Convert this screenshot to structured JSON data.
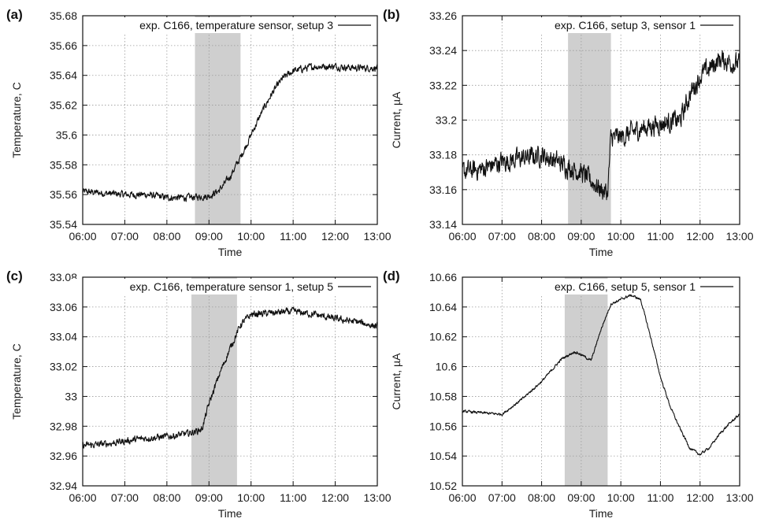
{
  "chart_data": [
    {
      "type": "line",
      "panel_label": "(a)",
      "xlabel": "Time",
      "ylabel": "Temperature, C",
      "x_ticks": [
        "06:00",
        "07:00",
        "08:00",
        "09:00",
        "10:00",
        "11:00",
        "12:00",
        "13:00"
      ],
      "xlim": [
        "06:00",
        "13:00"
      ],
      "ylim": [
        35.54,
        35.68
      ],
      "y_ticks": [
        "35.54",
        "35.56",
        "35.58",
        "35.6",
        "35.62",
        "35.64",
        "35.66",
        "35.68"
      ],
      "grid": true,
      "shaded_interval": [
        "08:40",
        "09:45"
      ],
      "legend_position": "top-right",
      "series": [
        {
          "name": "exp. C166, temperature sensor, setup 3",
          "x": [
            "06:00",
            "06:30",
            "07:00",
            "07:30",
            "08:00",
            "08:30",
            "09:00",
            "09:15",
            "09:30",
            "09:45",
            "10:00",
            "10:15",
            "10:30",
            "10:45",
            "11:00",
            "11:30",
            "12:00",
            "12:30",
            "13:00"
          ],
          "y": [
            35.562,
            35.561,
            35.56,
            35.56,
            35.558,
            35.558,
            35.559,
            35.563,
            35.572,
            35.585,
            35.6,
            35.615,
            35.628,
            35.638,
            35.643,
            35.646,
            35.646,
            35.645,
            35.645
          ],
          "noise": 0.004
        }
      ]
    },
    {
      "type": "line",
      "panel_label": "(b)",
      "xlabel": "Time",
      "ylabel": "Current, µA",
      "x_ticks": [
        "06:00",
        "07:00",
        "08:00",
        "09:00",
        "10:00",
        "11:00",
        "12:00",
        "13:00"
      ],
      "xlim": [
        "06:00",
        "13:00"
      ],
      "ylim": [
        33.14,
        33.26
      ],
      "y_ticks": [
        "33.14",
        "33.16",
        "33.18",
        "33.2",
        "33.22",
        "33.24",
        "33.26"
      ],
      "grid": true,
      "shaded_interval": [
        "08:40",
        "09:45"
      ],
      "legend_position": "top-right",
      "series": [
        {
          "name": "exp. C166, setup 3, sensor 1",
          "x": [
            "06:00",
            "06:30",
            "07:00",
            "07:30",
            "08:00",
            "08:30",
            "09:00",
            "09:30",
            "09:40",
            "09:45",
            "10:00",
            "10:30",
            "11:00",
            "11:30",
            "11:45",
            "12:00",
            "12:30",
            "13:00"
          ],
          "y": [
            33.17,
            33.172,
            33.176,
            33.178,
            33.18,
            33.175,
            33.17,
            33.16,
            33.158,
            33.19,
            33.19,
            33.195,
            33.198,
            33.2,
            33.215,
            33.225,
            33.235,
            33.232
          ],
          "noise": 0.01
        }
      ]
    },
    {
      "type": "line",
      "panel_label": "(c)",
      "xlabel": "Time",
      "ylabel": "Temperature, C",
      "x_ticks": [
        "06:00",
        "07:00",
        "08:00",
        "09:00",
        "10:00",
        "11:00",
        "12:00",
        "13:00"
      ],
      "xlim": [
        "06:00",
        "13:00"
      ],
      "ylim": [
        32.94,
        33.08
      ],
      "y_ticks": [
        "32.94",
        "32.96",
        "32.98",
        "33",
        "33.02",
        "33.04",
        "33.06",
        "33.08"
      ],
      "grid": true,
      "shaded_interval": [
        "08:35",
        "09:40"
      ],
      "legend_position": "top-right",
      "series": [
        {
          "name": "exp. C166, temperature sensor 1, setup 5",
          "x": [
            "06:00",
            "06:30",
            "07:00",
            "07:30",
            "08:00",
            "08:30",
            "08:50",
            "09:00",
            "09:15",
            "09:30",
            "09:45",
            "10:00",
            "10:30",
            "11:00",
            "11:30",
            "12:00",
            "12:30",
            "13:00"
          ],
          "y": [
            32.967,
            32.968,
            32.97,
            32.972,
            32.973,
            32.975,
            32.978,
            32.995,
            33.015,
            33.032,
            33.048,
            33.055,
            33.056,
            33.057,
            33.055,
            33.052,
            33.05,
            33.047
          ],
          "noise": 0.004
        }
      ]
    },
    {
      "type": "line",
      "panel_label": "(d)",
      "xlabel": "Time",
      "ylabel": "Current, µA",
      "x_ticks": [
        "06:00",
        "07:00",
        "08:00",
        "09:00",
        "10:00",
        "11:00",
        "12:00",
        "13:00"
      ],
      "xlim": [
        "06:00",
        "13:00"
      ],
      "ylim": [
        10.52,
        10.66
      ],
      "y_ticks": [
        "10.52",
        "10.54",
        "10.56",
        "10.58",
        "10.6",
        "10.62",
        "10.64",
        "10.66"
      ],
      "grid": true,
      "shaded_interval": [
        "08:35",
        "09:40"
      ],
      "legend_position": "top-right",
      "series": [
        {
          "name": "exp. C166, setup 5, sensor 1",
          "x": [
            "06:00",
            "06:30",
            "07:00",
            "07:30",
            "08:00",
            "08:30",
            "08:50",
            "09:00",
            "09:15",
            "09:30",
            "09:45",
            "10:00",
            "10:15",
            "10:30",
            "10:45",
            "11:00",
            "11:15",
            "11:30",
            "11:45",
            "12:00",
            "12:15",
            "12:30",
            "12:45",
            "13:00"
          ],
          "y": [
            10.57,
            10.569,
            10.568,
            10.578,
            10.59,
            10.605,
            10.61,
            10.608,
            10.604,
            10.625,
            10.642,
            10.645,
            10.648,
            10.645,
            10.62,
            10.593,
            10.573,
            10.558,
            10.545,
            10.541,
            10.546,
            10.555,
            10.562,
            10.568
          ],
          "noise": 0.0015
        }
      ]
    }
  ],
  "colors": {
    "line": "#111111",
    "shade": "#cfcfcf",
    "grid": "#9a9a9a",
    "frame": "#111111"
  }
}
